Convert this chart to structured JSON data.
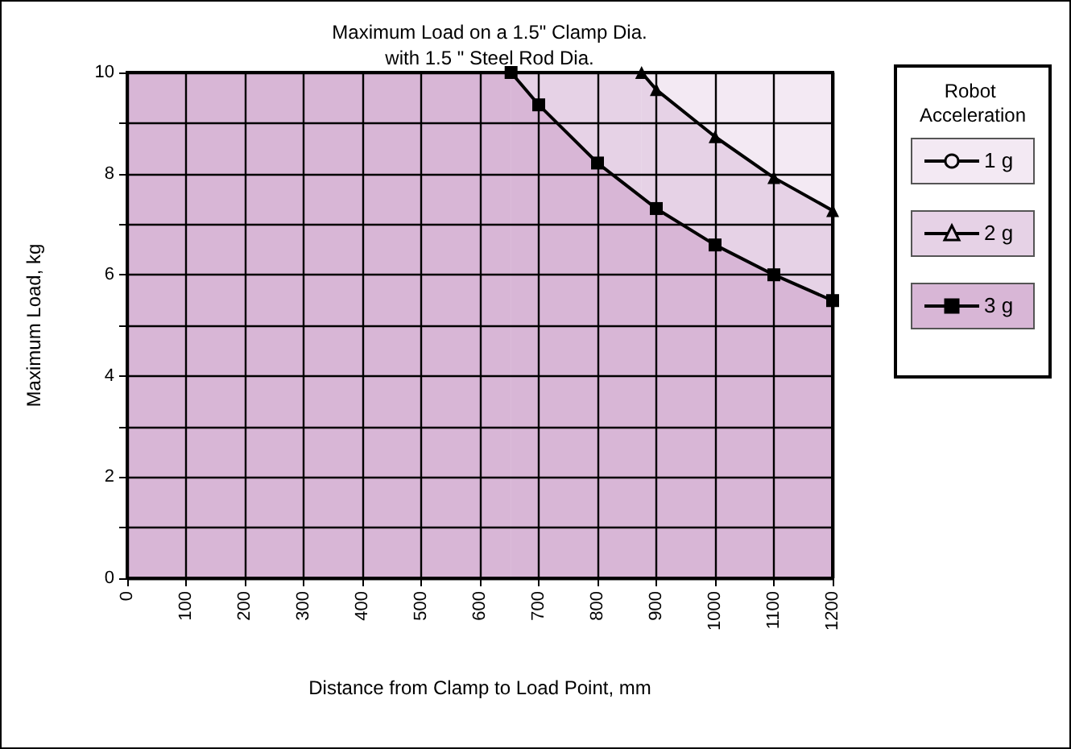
{
  "chart_data": {
    "type": "area",
    "title": "Maximum Load on a 1.5\" Clamp Dia.",
    "subtitle": "with 1.5 \" Steel Rod Dia.",
    "xlabel": "Distance from Clamp to Load Point, mm",
    "ylabel": "Maximum Load, kg",
    "legend_title": "Robot Acceleration",
    "series": [
      {
        "name": "1 g",
        "color": "#f3e9f3",
        "marker": "circle"
      },
      {
        "name": "2 g",
        "color": "#e6d2e6",
        "marker": "triangle",
        "x": [
          875,
          900,
          1000,
          1100,
          1200
        ],
        "values": [
          10,
          9.66,
          8.73,
          7.92,
          7.27
        ]
      },
      {
        "name": "3 g",
        "color": "#d8b6d6",
        "marker": "square",
        "x": [
          653,
          700,
          800,
          900,
          1000,
          1100,
          1200
        ],
        "values": [
          10,
          9.36,
          8.21,
          7.31,
          6.59,
          6.0,
          5.49
        ]
      }
    ],
    "bands": [
      {
        "axis": "y",
        "from": 0,
        "to": 10,
        "color": "#f3e9f3"
      },
      {
        "axis": "x",
        "from": 0,
        "to": 875,
        "color": "#e6d2e6"
      },
      {
        "axis": "x",
        "from": 0,
        "to": 653,
        "color": "#d8b6d6"
      }
    ],
    "xlim": [
      0,
      1200
    ],
    "xticks": [
      0,
      100,
      200,
      300,
      400,
      500,
      600,
      700,
      800,
      900,
      1000,
      1100,
      1200
    ],
    "ylim": [
      0,
      10
    ],
    "yticks": [
      0,
      {
        "value": 1,
        "label": null
      },
      2,
      {
        "value": 3,
        "label": null
      },
      4,
      {
        "value": 5,
        "label": null
      },
      6,
      {
        "value": 7,
        "label": null
      },
      8,
      {
        "value": 9,
        "label": null
      },
      10
    ],
    "grid": true,
    "legend": "right",
    "line_style": "solid"
  }
}
